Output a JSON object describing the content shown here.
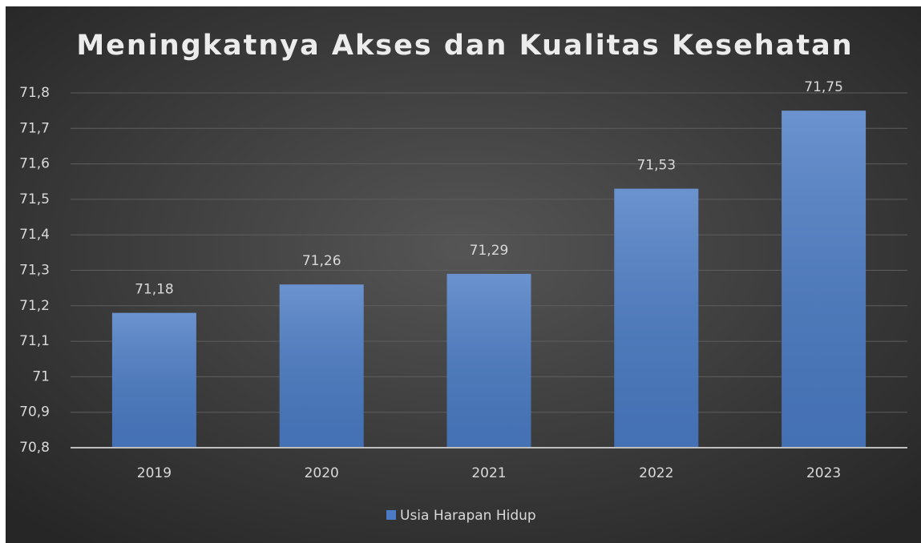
{
  "chart_data": {
    "type": "bar",
    "title": "Meningkatnya Akses dan Kualitas Kesehatan",
    "categories": [
      "2019",
      "2020",
      "2021",
      "2022",
      "2023"
    ],
    "series": [
      {
        "name": "Usia Harapan Hidup",
        "color": "#4a7bc4",
        "values": [
          71.18,
          71.26,
          71.29,
          71.53,
          71.75
        ],
        "value_labels": [
          "71,18",
          "71,26",
          "71,29",
          "71,53",
          "71,75"
        ]
      }
    ],
    "ylim": [
      70.8,
      71.8
    ],
    "yticks": [
      {
        "value": 70.8,
        "label": "70,8"
      },
      {
        "value": 70.9,
        "label": "70,9"
      },
      71,
      {
        "value": 71.1,
        "label": "71,1"
      },
      {
        "value": 71.2,
        "label": "71,2"
      },
      {
        "value": 71.3,
        "label": "71,3"
      },
      {
        "value": 71.4,
        "label": "71,4"
      },
      {
        "value": 71.5,
        "label": "71,5"
      },
      {
        "value": 71.6,
        "label": "71,6"
      },
      {
        "value": 71.7,
        "label": "71,7"
      },
      {
        "value": 71.8,
        "label": "71,8"
      }
    ],
    "grid": true,
    "legend": "bottom"
  }
}
